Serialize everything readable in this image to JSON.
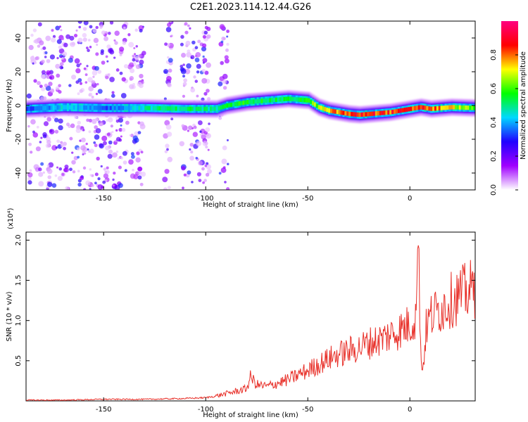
{
  "title": "C2E1.2023.114.12.44.G26",
  "chart_data": [
    {
      "type": "heatmap",
      "xlabel": "Height of straight line (km)",
      "ylabel": "Frequency (Hz)",
      "xlim": [
        -188,
        32
      ],
      "ylim": [
        -50,
        50
      ],
      "xticks": [
        -150,
        -100,
        -50,
        0
      ],
      "yticks": [
        -40,
        -20,
        0,
        20,
        40
      ],
      "colorbar": {
        "label": "Normalized spectral amplitude",
        "range": [
          0.0,
          1.0
        ],
        "ticks": [
          0.0,
          0.2,
          0.4,
          0.6,
          0.8
        ],
        "colors": [
          "#ffffff",
          "#a000ff",
          "#2000ff",
          "#00d8ff",
          "#00ff00",
          "#ffff00",
          "#ff0000",
          "#ff0080"
        ]
      },
      "ridge": {
        "x": [
          -188,
          -170,
          -150,
          -130,
          -110,
          -95,
          -90,
          -80,
          -70,
          -60,
          -50,
          -45,
          -40,
          -35,
          -30,
          -25,
          -20,
          -10,
          0,
          5,
          10,
          20,
          32
        ],
        "freq": [
          -2,
          -1,
          -1.5,
          -1.5,
          -2,
          -2,
          0,
          2,
          3,
          4,
          3,
          -1,
          -3,
          -4,
          -5,
          -5.5,
          -5,
          -4,
          -2,
          -1,
          -2,
          -1,
          -1.5
        ],
        "amplitude": [
          0.35,
          0.45,
          0.35,
          0.5,
          0.55,
          0.5,
          0.55,
          0.6,
          0.55,
          0.55,
          0.6,
          0.7,
          0.75,
          0.85,
          0.85,
          0.9,
          0.9,
          0.88,
          0.85,
          0.9,
          0.85,
          0.75,
          0.6
        ]
      },
      "noise_columns": [
        [
          -187,
          -130
        ],
        [
          -120,
          -116
        ],
        [
          -112,
          -98
        ],
        [
          -93,
          -89
        ]
      ]
    },
    {
      "type": "line",
      "xlabel": "Height of straight line (km)",
      "ylabel": "SNR (10 * v/v)",
      "y_scale_label": "(x10⁴)",
      "xlim": [
        -188,
        32
      ],
      "ylim": [
        0,
        2.1
      ],
      "xticks": [
        -150,
        -100,
        -50,
        0
      ],
      "yticks": [
        0.5,
        1.0,
        1.5,
        2.0
      ],
      "ytick_labels": [
        "0.5",
        "1.0",
        "1.5",
        "2.0"
      ],
      "color": "#e8312a",
      "series": [
        {
          "x": [
            -188,
            -170,
            -150,
            -130,
            -110,
            -100,
            -95,
            -90,
            -85,
            -80,
            -78,
            -75,
            -70,
            -65,
            -60,
            -55,
            -50,
            -45,
            -40,
            -35,
            -30,
            -25,
            -20,
            -15,
            -10,
            -5,
            0,
            3,
            4,
            5,
            6,
            8,
            10,
            15,
            20,
            25,
            30,
            32
          ],
          "y": [
            0.01,
            0.01,
            0.02,
            0.02,
            0.03,
            0.04,
            0.06,
            0.09,
            0.12,
            0.15,
            0.3,
            0.2,
            0.18,
            0.22,
            0.26,
            0.32,
            0.38,
            0.45,
            0.52,
            0.58,
            0.62,
            0.66,
            0.72,
            0.76,
            0.82,
            0.88,
            0.95,
            1.05,
            2.1,
            1.0,
            0.3,
            0.9,
            1.05,
            1.15,
            1.25,
            1.32,
            1.38,
            1.4
          ]
        }
      ]
    }
  ]
}
